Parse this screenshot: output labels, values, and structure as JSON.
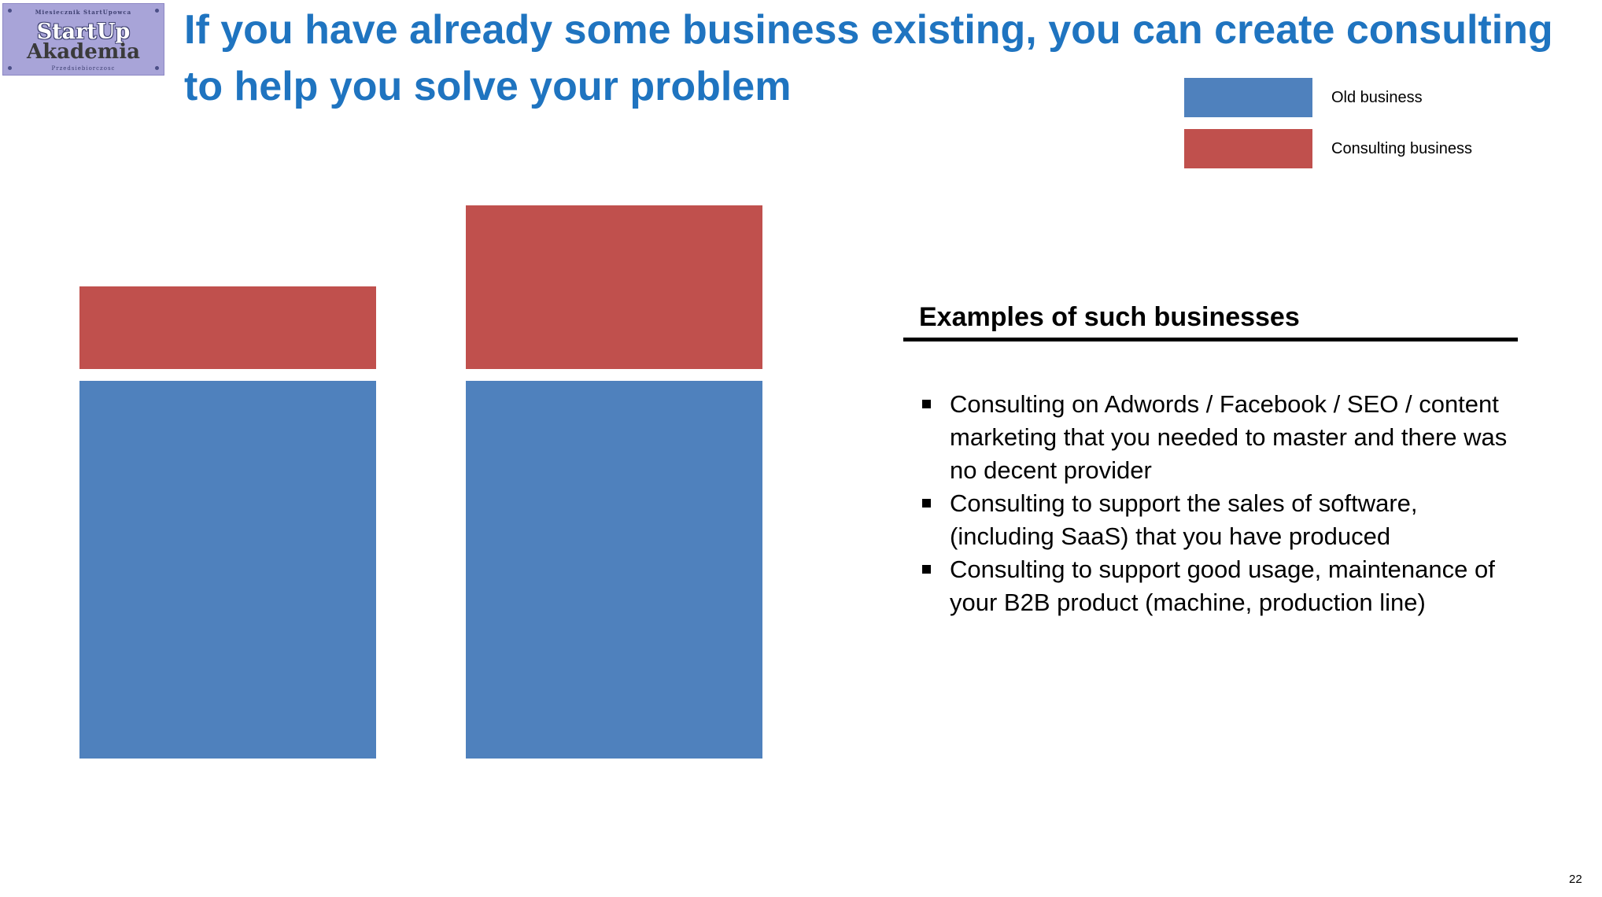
{
  "logo": {
    "top_text": "Miesiecznik StartUpowca",
    "main_text": "StartUp",
    "sub_text": "Akademia",
    "bottom_text": "Przedsiebiorczosc"
  },
  "slide": {
    "title": "If you have already some business existing, you can create consulting to help you solve your problem",
    "page_number": "22"
  },
  "legend": [
    {
      "label": "Old business",
      "color": "#4f81bd"
    },
    {
      "label": "Consulting business",
      "color": "#c0504d"
    }
  ],
  "examples": {
    "title": "Examples of such businesses",
    "items": [
      "Consulting on Adwords / Facebook / SEO / content marketing that you needed to master and there was no decent provider",
      "Consulting to support the sales of software, (including SaaS)  that you have produced",
      "Consulting to support good usage, maintenance of your B2B product (machine, production line)"
    ]
  },
  "chart_data": {
    "type": "bar",
    "stacked": true,
    "axes_visible": false,
    "categories": [
      "",
      ""
    ],
    "series": [
      {
        "name": "Old business",
        "color": "#4f81bd",
        "values": [
          480,
          480
        ]
      },
      {
        "name": "Consulting business",
        "color": "#c0504d",
        "values": [
          105,
          208
        ]
      }
    ],
    "ylim": [
      0,
      705
    ]
  }
}
